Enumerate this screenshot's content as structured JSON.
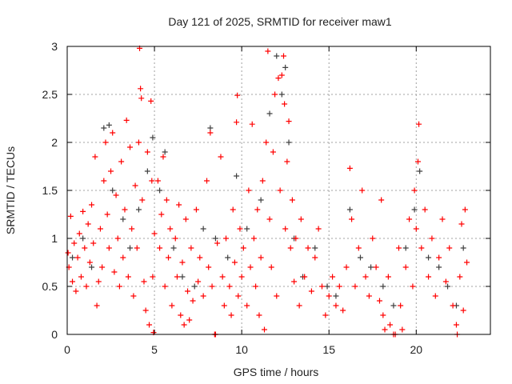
{
  "chart_data": {
    "type": "scatter",
    "title": "Day 121 of 2025, SRMTID for receiver maw1",
    "xlabel": "GPS time / hours",
    "ylabel": "SRMTID / TECUs",
    "xlim": [
      0,
      24.25
    ],
    "ylim": [
      0,
      3
    ],
    "xticks": [
      0,
      5,
      10,
      15,
      20
    ],
    "yticks": [
      0,
      0.5,
      1,
      1.5,
      2,
      2.5,
      3
    ],
    "ytick_labels": [
      "0",
      "0.5",
      "1",
      "1.5",
      "2",
      "2.5",
      "3"
    ],
    "grid": true,
    "series": [
      {
        "name": "dark",
        "color": "#404040",
        "points": [
          [
            0.3,
            0.8
          ],
          [
            0.9,
            1.0
          ],
          [
            1.4,
            0.7
          ],
          [
            2.1,
            2.15
          ],
          [
            2.4,
            2.18
          ],
          [
            2.6,
            1.5
          ],
          [
            3.2,
            1.2
          ],
          [
            3.6,
            0.9
          ],
          [
            4.1,
            1.3
          ],
          [
            4.6,
            1.7
          ],
          [
            4.9,
            2.05
          ],
          [
            5.3,
            1.5
          ],
          [
            5.6,
            1.9
          ],
          [
            6.1,
            0.9
          ],
          [
            6.6,
            0.6
          ],
          [
            7.3,
            0.5
          ],
          [
            7.8,
            1.1
          ],
          [
            8.2,
            2.15
          ],
          [
            8.5,
            1.0
          ],
          [
            9.2,
            0.8
          ],
          [
            9.7,
            1.65
          ],
          [
            10.3,
            1.1
          ],
          [
            11.1,
            1.4
          ],
          [
            11.6,
            2.3
          ],
          [
            12.0,
            2.9
          ],
          [
            12.3,
            2.5
          ],
          [
            12.5,
            2.78
          ],
          [
            12.7,
            2.0
          ],
          [
            13.0,
            1.0
          ],
          [
            13.5,
            0.6
          ],
          [
            14.2,
            0.9
          ],
          [
            14.9,
            0.5
          ],
          [
            15.4,
            0.4
          ],
          [
            16.2,
            1.3
          ],
          [
            16.8,
            0.8
          ],
          [
            17.4,
            0.7
          ],
          [
            18.1,
            0.5
          ],
          [
            18.7,
            0.3
          ],
          [
            19.4,
            0.9
          ],
          [
            19.9,
            1.3
          ],
          [
            20.2,
            1.7
          ],
          [
            20.7,
            0.8
          ],
          [
            21.3,
            0.7
          ],
          [
            21.8,
            0.5
          ],
          [
            22.3,
            0.3
          ],
          [
            22.7,
            0.9
          ]
        ]
      },
      {
        "name": "red",
        "color": "#ff0000",
        "points": [
          [
            0.05,
            0.85
          ],
          [
            0.1,
            0.7
          ],
          [
            0.2,
            1.23
          ],
          [
            0.3,
            0.55
          ],
          [
            0.4,
            0.95
          ],
          [
            0.5,
            0.45
          ],
          [
            0.6,
            0.8
          ],
          [
            0.7,
            1.05
          ],
          [
            0.8,
            0.6
          ],
          [
            0.9,
            1.28
          ],
          [
            1.0,
            0.9
          ],
          [
            1.1,
            0.5
          ],
          [
            1.2,
            1.15
          ],
          [
            1.3,
            0.75
          ],
          [
            1.4,
            1.35
          ],
          [
            1.5,
            0.95
          ],
          [
            1.6,
            1.85
          ],
          [
            1.7,
            0.3
          ],
          [
            1.8,
            0.55
          ],
          [
            1.9,
            1.1
          ],
          [
            2.0,
            0.7
          ],
          [
            2.1,
            1.6
          ],
          [
            2.2,
            2.0
          ],
          [
            2.3,
            1.25
          ],
          [
            2.4,
            0.9
          ],
          [
            2.5,
            1.7
          ],
          [
            2.6,
            2.1
          ],
          [
            2.7,
            0.65
          ],
          [
            2.8,
            1.45
          ],
          [
            2.9,
            1.0
          ],
          [
            3.0,
            0.5
          ],
          [
            3.1,
            1.8
          ],
          [
            3.2,
            0.8
          ],
          [
            3.3,
            1.3
          ],
          [
            3.4,
            2.23
          ],
          [
            3.5,
            0.6
          ],
          [
            3.6,
            1.95
          ],
          [
            3.7,
            1.1
          ],
          [
            3.8,
            0.4
          ],
          [
            3.9,
            1.55
          ],
          [
            4.0,
            0.9
          ],
          [
            4.1,
            2.0
          ],
          [
            4.15,
            2.98
          ],
          [
            4.2,
            2.56
          ],
          [
            4.25,
            2.46
          ],
          [
            4.3,
            1.4
          ],
          [
            4.4,
            0.55
          ],
          [
            4.5,
            0.25
          ],
          [
            4.6,
            1.9
          ],
          [
            4.7,
            0.1
          ],
          [
            4.8,
            2.43
          ],
          [
            4.85,
            1.6
          ],
          [
            4.9,
            0.6
          ],
          [
            4.95,
            0.02
          ],
          [
            5.0,
            1.05
          ],
          [
            5.2,
            1.6
          ],
          [
            5.3,
            0.9
          ],
          [
            5.4,
            1.25
          ],
          [
            5.5,
            1.85
          ],
          [
            5.6,
            0.5
          ],
          [
            5.7,
            1.4
          ],
          [
            5.8,
            0.8
          ],
          [
            5.9,
            1.1
          ],
          [
            6.0,
            0.3
          ],
          [
            6.2,
            1.0
          ],
          [
            6.3,
            0.6
          ],
          [
            6.4,
            1.35
          ],
          [
            6.5,
            0.2
          ],
          [
            6.6,
            0.75
          ],
          [
            6.7,
            0.1
          ],
          [
            6.8,
            1.2
          ],
          [
            6.9,
            0.45
          ],
          [
            7.0,
            0.15
          ],
          [
            7.1,
            0.9
          ],
          [
            7.2,
            0.35
          ],
          [
            7.4,
            1.3
          ],
          [
            7.5,
            0.55
          ],
          [
            7.6,
            0.8
          ],
          [
            7.8,
            0.4
          ],
          [
            8.0,
            1.6
          ],
          [
            8.1,
            0.7
          ],
          [
            8.2,
            2.1
          ],
          [
            8.3,
            0.5
          ],
          [
            8.45,
            0.0
          ],
          [
            8.5,
            0.0
          ],
          [
            8.6,
            0.95
          ],
          [
            8.8,
            1.85
          ],
          [
            8.9,
            0.6
          ],
          [
            9.0,
            0.3
          ],
          [
            9.1,
            1.0
          ],
          [
            9.3,
            0.5
          ],
          [
            9.4,
            0.2
          ],
          [
            9.5,
            1.3
          ],
          [
            9.6,
            0.75
          ],
          [
            9.7,
            2.21
          ],
          [
            9.75,
            2.49
          ],
          [
            9.8,
            0.4
          ],
          [
            9.9,
            1.1
          ],
          [
            10.0,
            0.6
          ],
          [
            10.1,
            0.9
          ],
          [
            10.3,
            0.3
          ],
          [
            10.4,
            1.5
          ],
          [
            10.5,
            0.7
          ],
          [
            10.6,
            2.19
          ],
          [
            10.7,
            1.0
          ],
          [
            10.8,
            0.5
          ],
          [
            10.9,
            1.3
          ],
          [
            11.0,
            0.2
          ],
          [
            11.1,
            0.8
          ],
          [
            11.2,
            1.6
          ],
          [
            11.3,
            0.05
          ],
          [
            11.4,
            2.0
          ],
          [
            11.5,
            2.95
          ],
          [
            11.6,
            1.2
          ],
          [
            11.7,
            0.7
          ],
          [
            11.8,
            1.9
          ],
          [
            11.9,
            2.5
          ],
          [
            12.0,
            0.4
          ],
          [
            12.1,
            2.67
          ],
          [
            12.2,
            1.5
          ],
          [
            12.3,
            2.7
          ],
          [
            12.4,
            2.9
          ],
          [
            12.45,
            2.4
          ],
          [
            12.5,
            1.1
          ],
          [
            12.6,
            1.8
          ],
          [
            12.7,
            2.22
          ],
          [
            12.8,
            0.9
          ],
          [
            12.9,
            1.4
          ],
          [
            13.0,
            0.55
          ],
          [
            13.1,
            1.0
          ],
          [
            13.3,
            0.3
          ],
          [
            13.4,
            1.2
          ],
          [
            13.6,
            0.6
          ],
          [
            13.8,
            0.9
          ],
          [
            14.0,
            0.45
          ],
          [
            14.2,
            0.8
          ],
          [
            14.4,
            1.1
          ],
          [
            14.6,
            0.5
          ],
          [
            14.8,
            0.2
          ],
          [
            15.0,
            0.4
          ],
          [
            15.2,
            0.6
          ],
          [
            15.4,
            0.3
          ],
          [
            15.6,
            0.5
          ],
          [
            15.8,
            0.25
          ],
          [
            16.0,
            0.7
          ],
          [
            16.2,
            1.73
          ],
          [
            16.3,
            1.2
          ],
          [
            16.5,
            0.5
          ],
          [
            16.7,
            0.9
          ],
          [
            16.9,
            1.5
          ],
          [
            17.1,
            0.6
          ],
          [
            17.3,
            0.4
          ],
          [
            17.5,
            1.0
          ],
          [
            17.7,
            0.7
          ],
          [
            17.9,
            0.35
          ],
          [
            18.0,
            1.4
          ],
          [
            18.1,
            0.2
          ],
          [
            18.2,
            0.05
          ],
          [
            18.4,
            0.6
          ],
          [
            18.5,
            0.1
          ],
          [
            18.7,
            0.0
          ],
          [
            18.8,
            0.0
          ],
          [
            19.0,
            0.9
          ],
          [
            19.1,
            0.3
          ],
          [
            19.2,
            0.05
          ],
          [
            19.4,
            0.7
          ],
          [
            19.6,
            1.2
          ],
          [
            19.8,
            0.5
          ],
          [
            19.9,
            1.5
          ],
          [
            20.0,
            1.1
          ],
          [
            20.1,
            1.8
          ],
          [
            20.15,
            2.19
          ],
          [
            20.3,
            0.9
          ],
          [
            20.5,
            1.3
          ],
          [
            20.7,
            0.6
          ],
          [
            20.9,
            1.0
          ],
          [
            21.1,
            0.4
          ],
          [
            21.3,
            0.8
          ],
          [
            21.5,
            1.2
          ],
          [
            21.7,
            0.55
          ],
          [
            21.9,
            0.9
          ],
          [
            22.1,
            0.3
          ],
          [
            22.3,
            0.1
          ],
          [
            22.35,
            0.0
          ],
          [
            22.5,
            0.6
          ],
          [
            22.6,
            1.15
          ],
          [
            22.7,
            0.25
          ],
          [
            22.8,
            1.3
          ],
          [
            22.9,
            0.75
          ]
        ]
      }
    ]
  }
}
